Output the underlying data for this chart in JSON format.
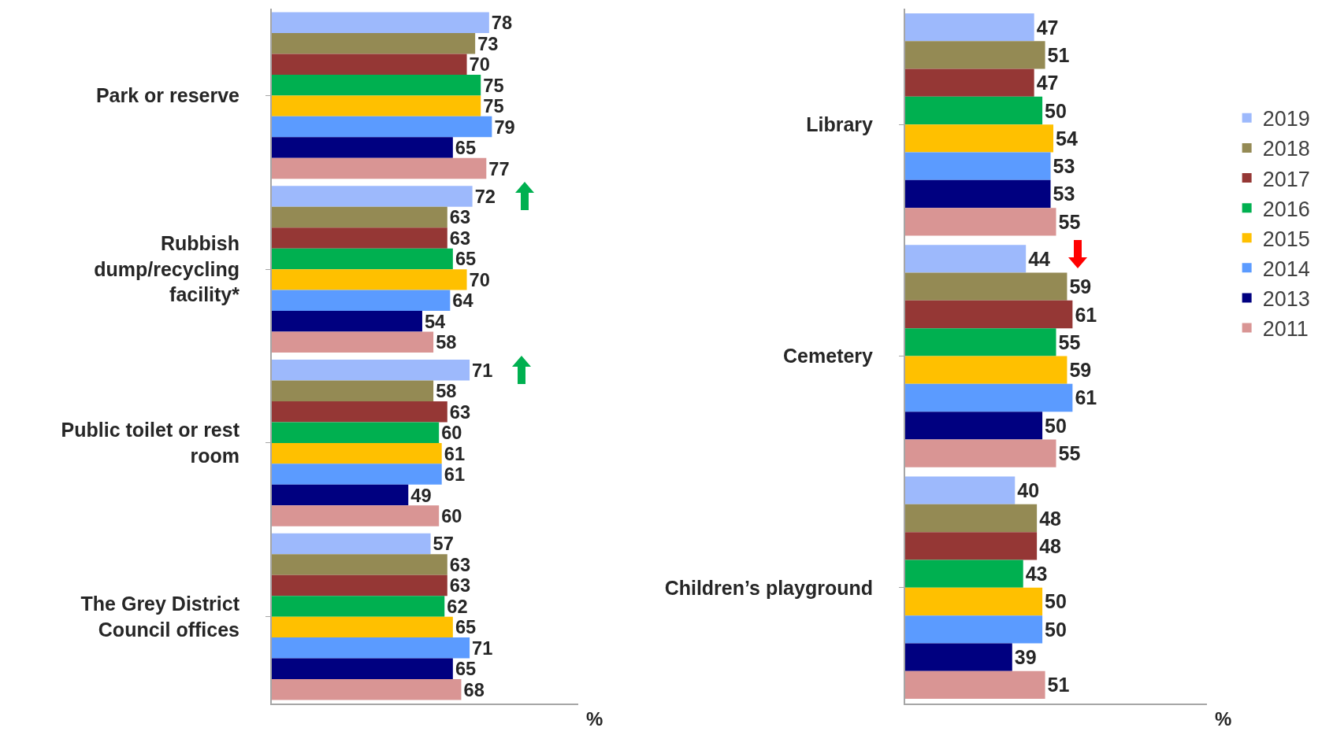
{
  "chart_data": [
    {
      "type": "bar",
      "orientation": "horizontal",
      "categories": [
        "Park or reserve",
        "Rubbish dump/recycling facility*",
        "Public toilet or rest room",
        "The Grey District Council offices"
      ],
      "xlabel": "%",
      "xlim": [
        0,
        110
      ],
      "tick_labels": "y",
      "data_labels": true,
      "grid": false,
      "legend": false,
      "series": [
        {
          "color": "#9db9fc",
          "values": [
            78,
            72,
            71,
            57
          ]
        },
        {
          "color": "#948a54",
          "values": [
            73,
            63,
            58,
            63
          ]
        },
        {
          "color": "#953735",
          "values": [
            70,
            63,
            63,
            63
          ]
        },
        {
          "color": "#00b050",
          "values": [
            75,
            65,
            60,
            62
          ]
        },
        {
          "color": "#ffc000",
          "values": [
            75,
            70,
            61,
            65
          ]
        },
        {
          "color": "#5b9bff",
          "values": [
            79,
            64,
            61,
            71
          ]
        },
        {
          "color": "#000080",
          "values": [
            65,
            54,
            49,
            65
          ]
        },
        {
          "color": "#d99594",
          "values": [
            77,
            58,
            60,
            68
          ]
        }
      ]
    },
    {
      "type": "bar",
      "orientation": "horizontal",
      "categories": [
        "Library",
        "Cemetery",
        "Children’s playground"
      ],
      "xlabel": "%",
      "xlim": [
        0,
        110
      ],
      "tick_labels": "y",
      "data_labels": true,
      "grid": false,
      "legend": "right",
      "series": [
        {
          "name": "2019",
          "color": "#9db9fc",
          "values": [
            47,
            44,
            40
          ]
        },
        {
          "name": "2018",
          "color": "#948a54",
          "values": [
            51,
            59,
            48
          ]
        },
        {
          "name": "2017",
          "color": "#953735",
          "values": [
            47,
            61,
            48
          ]
        },
        {
          "name": "2016",
          "color": "#00b050",
          "values": [
            50,
            55,
            43
          ]
        },
        {
          "name": "2015",
          "color": "#ffc000",
          "values": [
            54,
            59,
            50
          ]
        },
        {
          "name": "2014",
          "color": "#5b9bff",
          "values": [
            53,
            61,
            50
          ]
        },
        {
          "name": "2013",
          "color": "#000080",
          "values": [
            53,
            50,
            39
          ]
        },
        {
          "name": "2011",
          "color": "#d99594",
          "values": [
            55,
            55,
            51
          ]
        }
      ]
    }
  ]
}
